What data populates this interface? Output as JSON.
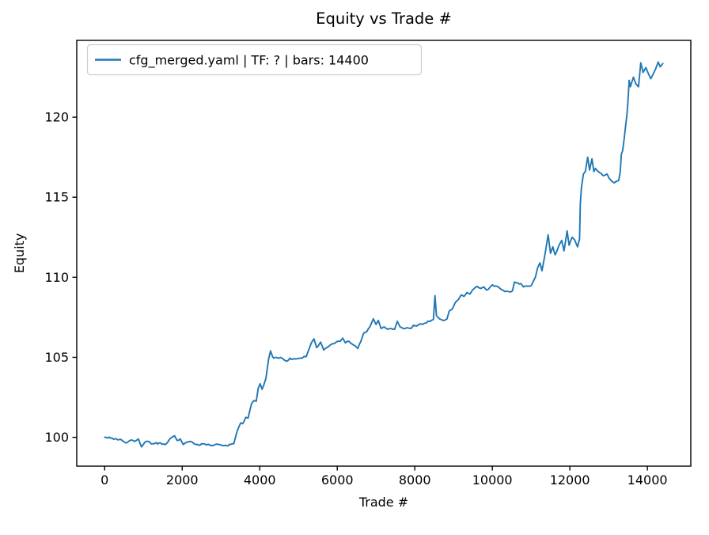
{
  "window": {
    "title": "Equity vs Trade #"
  },
  "colors": {
    "line": "#1f77b4",
    "spine": "#000000",
    "text": "#000000",
    "legend_edge": "#cccccc",
    "background": "#ffffff"
  },
  "chart_data": {
    "type": "line",
    "title": "Equity vs Trade #",
    "xlabel": "Trade #",
    "ylabel": "Equity",
    "grid": false,
    "legend_position": "upper left",
    "legend": [
      {
        "label": "cfg_merged.yaml | TF: ? | bars: 14400",
        "color": "#1f77b4"
      }
    ],
    "xlim": [
      -720,
      15120
    ],
    "ylim": [
      98.2,
      124.8
    ],
    "x_ticks": [
      0,
      2000,
      4000,
      6000,
      8000,
      10000,
      12000,
      14000
    ],
    "y_ticks": [
      100,
      105,
      110,
      115,
      120
    ],
    "line_color": "#1f77b4",
    "line_width": 1.9,
    "series": [
      {
        "name": "cfg_merged.yaml | TF: ? | bars: 14400",
        "x": [
          0,
          150,
          300,
          450,
          550,
          650,
          780,
          870,
          950,
          1040,
          1120,
          1250,
          1400,
          1590,
          1700,
          1800,
          1870,
          1950,
          2030,
          2120,
          2220,
          2350,
          2500,
          2650,
          2810,
          2950,
          3100,
          3250,
          3330,
          3420,
          3510,
          3560,
          3640,
          3700,
          3790,
          3850,
          3910,
          3960,
          4010,
          4060,
          4110,
          4160,
          4230,
          4280,
          4330,
          4360,
          4420,
          4500,
          4600,
          4700,
          4780,
          4900,
          5000,
          5100,
          5200,
          5270,
          5330,
          5400,
          5470,
          5570,
          5650,
          5730,
          5810,
          5900,
          6010,
          6080,
          6140,
          6210,
          6300,
          6400,
          6470,
          6530,
          6610,
          6680,
          6760,
          6840,
          6930,
          7000,
          7060,
          7130,
          7210,
          7300,
          7400,
          7480,
          7550,
          7620,
          7700,
          7800,
          7900,
          7970,
          8040,
          8110,
          8200,
          8300,
          8400,
          8480,
          8520,
          8560,
          8640,
          8730,
          8830,
          8890,
          8960,
          9040,
          9120,
          9200,
          9270,
          9345,
          9420,
          9490,
          9610,
          9700,
          9780,
          9850,
          9900,
          10000,
          10100,
          10200,
          10330,
          10430,
          10520,
          10570,
          10650,
          10740,
          10800,
          10900,
          11010,
          11110,
          11170,
          11230,
          11280,
          11350,
          11440,
          11500,
          11560,
          11620,
          11660,
          11720,
          11790,
          11850,
          11930,
          11980,
          12060,
          12120,
          12200,
          12250,
          12270,
          12300,
          12350,
          12400,
          12460,
          12510,
          12570,
          12620,
          12660,
          12760,
          12860,
          12960,
          13010,
          13080,
          13140,
          13210,
          13260,
          13300,
          13330,
          13360,
          13400,
          13440,
          13470,
          13500,
          13530,
          13560,
          13600,
          13640,
          13700,
          13770,
          13830,
          13890,
          13960,
          14030,
          14090,
          14150,
          14210,
          14280,
          14330,
          14400
        ],
        "y": [
          100.0,
          99.95,
          99.9,
          99.8,
          99.65,
          99.8,
          99.75,
          99.9,
          99.4,
          99.7,
          99.75,
          99.6,
          99.65,
          99.6,
          99.95,
          100.1,
          99.8,
          99.9,
          99.55,
          99.7,
          99.75,
          99.55,
          99.6,
          99.55,
          99.5,
          99.55,
          99.5,
          99.55,
          99.6,
          100.4,
          100.9,
          100.85,
          101.25,
          101.2,
          102.1,
          102.3,
          102.25,
          103.05,
          103.35,
          103.0,
          103.3,
          103.7,
          104.9,
          105.4,
          105.05,
          104.95,
          105.0,
          104.95,
          104.9,
          104.75,
          104.95,
          104.9,
          104.92,
          104.95,
          105.05,
          105.5,
          105.9,
          106.15,
          105.6,
          105.95,
          105.45,
          105.6,
          105.75,
          105.85,
          106.0,
          106.0,
          106.2,
          105.9,
          106.0,
          105.8,
          105.7,
          105.55,
          106.0,
          106.5,
          106.6,
          106.9,
          107.4,
          107.05,
          107.3,
          106.8,
          106.9,
          106.75,
          106.8,
          106.75,
          107.25,
          106.9,
          106.8,
          106.85,
          106.8,
          107.0,
          106.95,
          107.05,
          107.05,
          107.15,
          107.25,
          107.35,
          108.85,
          107.6,
          107.4,
          107.3,
          107.4,
          107.9,
          108.0,
          108.4,
          108.6,
          108.9,
          108.8,
          109.05,
          108.95,
          109.2,
          109.43,
          109.3,
          109.4,
          109.2,
          109.25,
          109.53,
          109.45,
          109.3,
          109.1,
          109.1,
          109.15,
          109.7,
          109.65,
          109.6,
          109.4,
          109.45,
          109.5,
          110.0,
          110.6,
          110.9,
          110.4,
          111.3,
          112.65,
          111.5,
          111.9,
          111.4,
          111.6,
          112.0,
          112.3,
          111.65,
          112.9,
          112.0,
          112.5,
          112.35,
          111.9,
          112.4,
          114.6,
          115.6,
          116.45,
          116.6,
          117.5,
          116.7,
          117.4,
          116.6,
          116.8,
          116.55,
          116.35,
          116.45,
          116.2,
          116.0,
          115.9,
          116.0,
          116.05,
          116.6,
          117.7,
          117.9,
          118.6,
          119.5,
          120.1,
          121.0,
          122.3,
          121.9,
          122.2,
          122.5,
          122.1,
          121.9,
          123.4,
          122.8,
          123.1,
          122.7,
          122.4,
          122.7,
          123.0,
          123.45,
          123.15,
          123.35
        ]
      }
    ]
  }
}
